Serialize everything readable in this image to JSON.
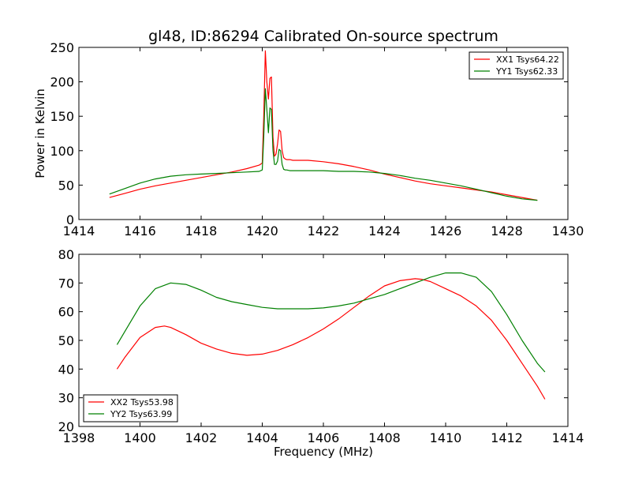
{
  "title": "gl48, ID:86294 Calibrated On-source spectrum",
  "colors": {
    "red": "#ff0000",
    "green": "#008000"
  },
  "chart_data": [
    {
      "type": "line",
      "title": "gl48, ID:86294 Calibrated On-source spectrum",
      "xlabel": "",
      "ylabel": "Power in Kelvin",
      "xlim": [
        1414,
        1430
      ],
      "ylim": [
        0,
        250
      ],
      "xticks": [
        1414,
        1416,
        1418,
        1420,
        1422,
        1424,
        1426,
        1428,
        1430
      ],
      "yticks": [
        0,
        50,
        100,
        150,
        200,
        250
      ],
      "legend_position": "top-right",
      "series": [
        {
          "name": "XX1 Tsys64.22",
          "color": "#ff0000",
          "x": [
            1415.0,
            1415.5,
            1416.0,
            1416.5,
            1417.0,
            1417.5,
            1418.0,
            1418.5,
            1419.0,
            1419.5,
            1419.9,
            1420.0,
            1420.05,
            1420.1,
            1420.15,
            1420.2,
            1420.25,
            1420.3,
            1420.35,
            1420.4,
            1420.45,
            1420.5,
            1420.55,
            1420.6,
            1420.65,
            1420.7,
            1420.75,
            1420.8,
            1420.9,
            1421.0,
            1421.5,
            1422.0,
            1422.5,
            1423.0,
            1423.5,
            1424.0,
            1424.5,
            1425.0,
            1425.5,
            1426.0,
            1426.5,
            1427.0,
            1427.5,
            1428.0,
            1428.5,
            1429.0
          ],
          "values": [
            32,
            38,
            44,
            49,
            53,
            57,
            61,
            65,
            69,
            74,
            79,
            82,
            150,
            245,
            200,
            175,
            205,
            207,
            120,
            92,
            95,
            110,
            130,
            128,
            100,
            90,
            88,
            87,
            87,
            86,
            86,
            84,
            81,
            77,
            72,
            66,
            61,
            56,
            52,
            49,
            46,
            43,
            40,
            36,
            32,
            28
          ]
        },
        {
          "name": "YY1 Tsys62.33",
          "color": "#008000",
          "x": [
            1415.0,
            1415.5,
            1416.0,
            1416.5,
            1417.0,
            1417.5,
            1418.0,
            1418.5,
            1419.0,
            1419.5,
            1419.9,
            1420.0,
            1420.05,
            1420.1,
            1420.15,
            1420.2,
            1420.25,
            1420.3,
            1420.35,
            1420.4,
            1420.45,
            1420.5,
            1420.55,
            1420.6,
            1420.65,
            1420.7,
            1420.75,
            1420.8,
            1420.9,
            1421.0,
            1421.5,
            1422.0,
            1422.5,
            1423.0,
            1423.5,
            1424.0,
            1424.5,
            1425.0,
            1425.5,
            1426.0,
            1426.5,
            1427.0,
            1427.5,
            1428.0,
            1428.5,
            1429.0
          ],
          "values": [
            37,
            45,
            53,
            59,
            63,
            65,
            66,
            67,
            68,
            69,
            70,
            72,
            120,
            190,
            160,
            126,
            162,
            160,
            100,
            80,
            80,
            85,
            102,
            100,
            80,
            73,
            72,
            72,
            71,
            71,
            71,
            71,
            70,
            70,
            69,
            67,
            64,
            60,
            57,
            53,
            49,
            44,
            39,
            34,
            30,
            28
          ]
        }
      ]
    },
    {
      "type": "line",
      "title": "",
      "xlabel": "Frequency (MHz)",
      "ylabel": "",
      "xlim": [
        1398,
        1414
      ],
      "ylim": [
        20,
        80
      ],
      "xticks": [
        1398,
        1400,
        1402,
        1404,
        1406,
        1408,
        1410,
        1412,
        1414
      ],
      "yticks": [
        20,
        30,
        40,
        50,
        60,
        70,
        80
      ],
      "legend_position": "bottom-left",
      "series": [
        {
          "name": "XX2 Tsys53.98",
          "color": "#ff0000",
          "x": [
            1399.25,
            1399.5,
            1400.0,
            1400.5,
            1400.8,
            1401.0,
            1401.5,
            1402.0,
            1402.5,
            1403.0,
            1403.5,
            1404.0,
            1404.5,
            1405.0,
            1405.5,
            1406.0,
            1406.5,
            1407.0,
            1407.5,
            1408.0,
            1408.5,
            1409.0,
            1409.2,
            1409.5,
            1410.0,
            1410.5,
            1411.0,
            1411.5,
            1412.0,
            1412.5,
            1413.0,
            1413.25
          ],
          "values": [
            40,
            44,
            51,
            54.5,
            55,
            54.5,
            52,
            49,
            47,
            45.5,
            44.8,
            45.2,
            46.5,
            48.5,
            51,
            54,
            57.5,
            61.5,
            65.5,
            69,
            70.8,
            71.5,
            71.3,
            70.5,
            68,
            65.5,
            62,
            57,
            50,
            42,
            34,
            29.5
          ]
        },
        {
          "name": "YY2 Tsys63.99",
          "color": "#008000",
          "x": [
            1399.25,
            1399.5,
            1400.0,
            1400.5,
            1401.0,
            1401.5,
            1402.0,
            1402.5,
            1403.0,
            1403.5,
            1404.0,
            1404.5,
            1405.0,
            1405.5,
            1406.0,
            1406.5,
            1407.0,
            1407.5,
            1408.0,
            1408.5,
            1409.0,
            1409.5,
            1410.0,
            1410.5,
            1411.0,
            1411.5,
            1412.0,
            1412.5,
            1413.0,
            1413.25
          ],
          "values": [
            48.5,
            53,
            62,
            68,
            70,
            69.5,
            67.5,
            65,
            63.5,
            62.5,
            61.5,
            61,
            61,
            61,
            61.3,
            62,
            63,
            64.5,
            66,
            68,
            70,
            72,
            73.5,
            73.5,
            72,
            67,
            59,
            50,
            42,
            39
          ]
        }
      ]
    }
  ]
}
